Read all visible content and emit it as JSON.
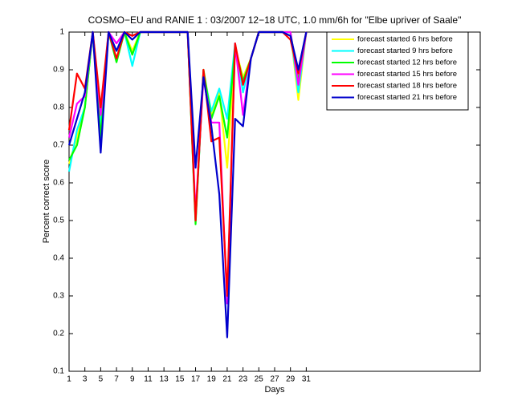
{
  "chart_data": {
    "type": "line",
    "title": "COSMO−EU and RANIE 1 : 03/2007 12−18 UTC, 1.0 mm/6h for \"Elbe upriver of Saale\"",
    "x_label": "Days",
    "y_label": "Percent correct score",
    "x": [
      1,
      2,
      3,
      4,
      5,
      6,
      7,
      8,
      9,
      10,
      11,
      12,
      13,
      14,
      15,
      16,
      17,
      18,
      19,
      20,
      21,
      22,
      23,
      24,
      25,
      26,
      27,
      28,
      29,
      30,
      31
    ],
    "series": [
      {
        "name": "forecast started 6 hrs before",
        "color": "#ffff00",
        "values": [
          0.65,
          0.72,
          0.8,
          1,
          0.73,
          1,
          0.93,
          1,
          0.95,
          1,
          1,
          1,
          1,
          1,
          1,
          1,
          0.5,
          0.9,
          0.78,
          0.84,
          0.64,
          0.96,
          0.88,
          0.93,
          1,
          1,
          1,
          1,
          1,
          0.82,
          1
        ]
      },
      {
        "name": "forecast started 9 hrs before",
        "color": "#00ffff",
        "values": [
          0.63,
          0.74,
          0.8,
          1,
          0.75,
          1,
          0.95,
          1,
          0.91,
          1,
          1,
          1,
          1,
          1,
          1,
          1,
          0.5,
          0.89,
          0.79,
          0.85,
          0.77,
          0.97,
          0.84,
          0.93,
          1,
          1,
          1,
          1,
          1,
          0.84,
          1
        ]
      },
      {
        "name": "forecast started 12 hrs before",
        "color": "#00ff00",
        "values": [
          0.66,
          0.7,
          0.8,
          1,
          0.72,
          1,
          0.92,
          1,
          0.94,
          1,
          1,
          1,
          1,
          1,
          1,
          1,
          0.49,
          0.9,
          0.77,
          0.83,
          0.72,
          0.96,
          0.87,
          0.93,
          1,
          1,
          1,
          1,
          1,
          0.87,
          1
        ]
      },
      {
        "name": "forecast started 15 hrs before",
        "color": "#ff00ff",
        "values": [
          0.72,
          0.81,
          0.83,
          1,
          0.78,
          1,
          0.97,
          1,
          0.99,
          1,
          1,
          1,
          1,
          1,
          1,
          1,
          0.52,
          0.88,
          0.76,
          0.76,
          0.28,
          0.97,
          0.78,
          0.93,
          1,
          1,
          1,
          1,
          1,
          0.86,
          1
        ]
      },
      {
        "name": "forecast started 18 hrs before",
        "color": "#ff0000",
        "values": [
          0.74,
          0.89,
          0.85,
          1,
          0.8,
          1,
          0.93,
          1,
          0.99,
          1,
          1,
          1,
          1,
          1,
          1,
          1,
          0.5,
          0.9,
          0.71,
          0.72,
          0.3,
          0.97,
          0.86,
          0.93,
          1,
          1,
          1,
          1,
          0.98,
          0.89,
          1
        ]
      },
      {
        "name": "forecast started 21 hrs before",
        "color": "#0000cc",
        "values": [
          0.7,
          0.77,
          0.84,
          1,
          0.68,
          1,
          0.95,
          1,
          0.98,
          1,
          1,
          1,
          1,
          1,
          1,
          1,
          0.64,
          0.88,
          0.75,
          0.57,
          0.19,
          0.77,
          0.75,
          0.93,
          1,
          1,
          1,
          1,
          0.99,
          0.9,
          1
        ]
      }
    ],
    "xlim": [
      1,
      53
    ],
    "ylim": [
      0.1,
      1
    ],
    "xticks": [
      1,
      3,
      5,
      7,
      9,
      11,
      13,
      15,
      17,
      19,
      21,
      23,
      25,
      27,
      29,
      31
    ],
    "yticks": [
      0.1,
      0.2,
      0.3,
      0.4,
      0.5,
      0.6,
      0.7,
      0.8,
      0.9,
      1
    ],
    "legend": "upper right"
  }
}
